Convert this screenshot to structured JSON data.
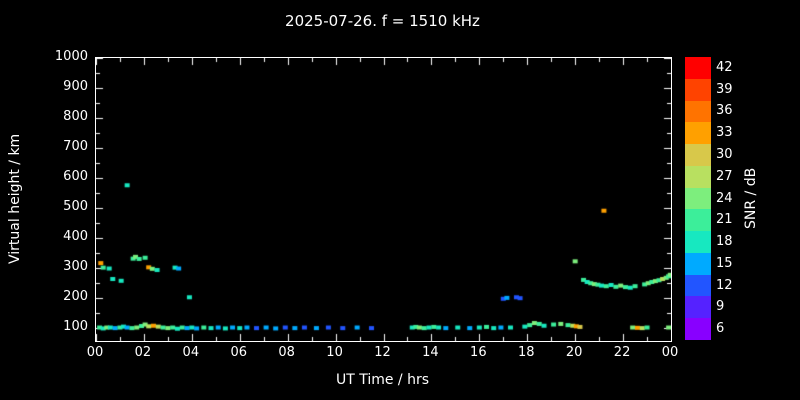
{
  "header": {
    "title": "2025-07-26. f = 1510 kHz"
  },
  "chart_data": {
    "type": "scatter",
    "title": "2025-07-26. f = 1510 kHz",
    "xlabel": "UT Time / hrs",
    "ylabel": "Virtual height / km",
    "colorbar_label": "SNR / dB",
    "background": "#000000",
    "axis_color": "#ffffff",
    "xlim": [
      0,
      24
    ],
    "ylim": [
      55,
      1000
    ],
    "x_tick_hours": [
      0,
      2,
      4,
      6,
      8,
      10,
      12,
      14,
      16,
      18,
      20,
      22,
      24
    ],
    "x_tick_labels": [
      "00",
      "02",
      "04",
      "06",
      "08",
      "10",
      "12",
      "14",
      "16",
      "18",
      "20",
      "22",
      "00"
    ],
    "y_ticks": [
      100,
      200,
      300,
      400,
      500,
      600,
      700,
      800,
      900,
      1000
    ],
    "snr_scale": {
      "ticks": [
        42,
        39,
        36,
        33,
        30,
        27,
        24,
        21,
        18,
        15,
        12,
        9,
        6
      ],
      "colors": [
        "#ff0000",
        "#ff4300",
        "#ff7300",
        "#ffa000",
        "#d8c84a",
        "#b8e060",
        "#7dee7d",
        "#3cee9a",
        "#17e8c0",
        "#00aaff",
        "#2255ff",
        "#5522ff",
        "#8800ff"
      ]
    },
    "points": [
      [
        0.15,
        100,
        21
      ],
      [
        0.3,
        97,
        18
      ],
      [
        0.45,
        100,
        24
      ],
      [
        0.6,
        100,
        18
      ],
      [
        0.8,
        98,
        15
      ],
      [
        1.0,
        100,
        21
      ],
      [
        1.15,
        103,
        18
      ],
      [
        1.3,
        100,
        15
      ],
      [
        1.5,
        98,
        21
      ],
      [
        1.7,
        100,
        24
      ],
      [
        1.9,
        105,
        21
      ],
      [
        2.05,
        110,
        24
      ],
      [
        2.2,
        104,
        27
      ],
      [
        2.4,
        106,
        33
      ],
      [
        2.6,
        103,
        27
      ],
      [
        2.8,
        100,
        21
      ],
      [
        3.0,
        98,
        24
      ],
      [
        3.2,
        100,
        21
      ],
      [
        3.4,
        96,
        18
      ],
      [
        3.6,
        100,
        21
      ],
      [
        3.8,
        98,
        15
      ],
      [
        4.0,
        100,
        18
      ],
      [
        4.2,
        97,
        15
      ],
      [
        4.5,
        100,
        21
      ],
      [
        4.8,
        98,
        18
      ],
      [
        5.1,
        100,
        15
      ],
      [
        5.4,
        97,
        18
      ],
      [
        5.7,
        100,
        15
      ],
      [
        6.0,
        98,
        18
      ],
      [
        6.3,
        100,
        15
      ],
      [
        6.7,
        98,
        12
      ],
      [
        7.1,
        100,
        15
      ],
      [
        7.5,
        97,
        15
      ],
      [
        7.9,
        100,
        12
      ],
      [
        8.3,
        98,
        15
      ],
      [
        8.7,
        100,
        12
      ],
      [
        9.2,
        98,
        15
      ],
      [
        9.7,
        100,
        12
      ],
      [
        10.3,
        98,
        12
      ],
      [
        10.9,
        100,
        15
      ],
      [
        11.5,
        98,
        12
      ],
      [
        13.2,
        100,
        18
      ],
      [
        13.35,
        102,
        21
      ],
      [
        13.5,
        100,
        24
      ],
      [
        13.7,
        98,
        21
      ],
      [
        13.9,
        100,
        18
      ],
      [
        14.1,
        102,
        21
      ],
      [
        14.3,
        100,
        18
      ],
      [
        14.6,
        98,
        15
      ],
      [
        15.1,
        100,
        18
      ],
      [
        15.6,
        98,
        15
      ],
      [
        16.0,
        100,
        18
      ],
      [
        16.3,
        102,
        21
      ],
      [
        16.6,
        98,
        18
      ],
      [
        16.9,
        100,
        15
      ],
      [
        17.3,
        100,
        18
      ],
      [
        17.9,
        103,
        18
      ],
      [
        18.1,
        108,
        21
      ],
      [
        18.3,
        115,
        24
      ],
      [
        18.5,
        112,
        21
      ],
      [
        18.7,
        106,
        18
      ],
      [
        19.1,
        110,
        21
      ],
      [
        19.4,
        112,
        24
      ],
      [
        19.7,
        108,
        21
      ],
      [
        19.9,
        106,
        27
      ],
      [
        20.05,
        104,
        33
      ],
      [
        20.2,
        102,
        30
      ],
      [
        22.4,
        100,
        24
      ],
      [
        22.6,
        99,
        33
      ],
      [
        22.8,
        98,
        27
      ],
      [
        23.0,
        100,
        21
      ],
      [
        23.9,
        100,
        24
      ],
      [
        0.2,
        315,
        33
      ],
      [
        0.3,
        300,
        21
      ],
      [
        0.55,
        297,
        18
      ],
      [
        0.7,
        262,
        18
      ],
      [
        1.05,
        256,
        18
      ],
      [
        1.3,
        575,
        18
      ],
      [
        1.55,
        330,
        21
      ],
      [
        1.65,
        336,
        24
      ],
      [
        1.8,
        329,
        21
      ],
      [
        2.05,
        333,
        21
      ],
      [
        2.2,
        301,
        33
      ],
      [
        2.35,
        296,
        24
      ],
      [
        2.55,
        292,
        18
      ],
      [
        3.3,
        300,
        18
      ],
      [
        3.45,
        297,
        15
      ],
      [
        3.9,
        201,
        18
      ],
      [
        17.0,
        196,
        12
      ],
      [
        17.15,
        199,
        15
      ],
      [
        17.55,
        201,
        12
      ],
      [
        17.7,
        198,
        12
      ],
      [
        20.0,
        321,
        24
      ],
      [
        20.35,
        259,
        21
      ],
      [
        20.5,
        252,
        18
      ],
      [
        20.65,
        248,
        21
      ],
      [
        20.8,
        245,
        24
      ],
      [
        20.95,
        243,
        21
      ],
      [
        21.1,
        240,
        18
      ],
      [
        21.2,
        490,
        33
      ],
      [
        21.3,
        238,
        21
      ],
      [
        21.5,
        242,
        18
      ],
      [
        21.7,
        236,
        21
      ],
      [
        21.9,
        240,
        24
      ],
      [
        22.1,
        235,
        21
      ],
      [
        22.3,
        233,
        18
      ],
      [
        22.5,
        238,
        21
      ],
      [
        22.9,
        244,
        21
      ],
      [
        23.05,
        248,
        24
      ],
      [
        23.2,
        252,
        21
      ],
      [
        23.35,
        255,
        24
      ],
      [
        23.5,
        258,
        21
      ],
      [
        23.65,
        262,
        27
      ],
      [
        23.8,
        266,
        24
      ],
      [
        23.9,
        271,
        21
      ],
      [
        23.97,
        276,
        24
      ]
    ]
  }
}
